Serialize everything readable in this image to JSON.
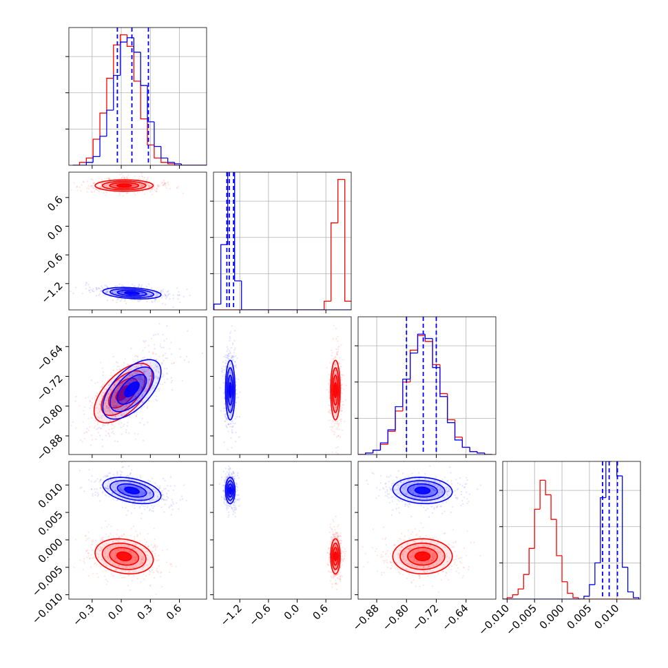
{
  "chart_data": {
    "type": "corner",
    "colors": [
      "#ff0000",
      "#0000ff"
    ],
    "quantile_color": "#0000ff",
    "grid": true,
    "params": [
      {
        "lim": [
          -0.54,
          0.88
        ],
        "ticks": [
          {
            "value": -0.3,
            "label": "−0.3"
          },
          {
            "value": 0.0,
            "label": "0.0"
          },
          {
            "value": 0.3,
            "label": "0.3"
          },
          {
            "value": 0.6,
            "label": "0.6"
          }
        ]
      },
      {
        "lim": [
          -1.75,
          1.13
        ],
        "ticks": [
          {
            "value": -1.2,
            "label": "−1.2"
          },
          {
            "value": -0.6,
            "label": "−0.6"
          },
          {
            "value": 0.0,
            "label": "0.0"
          },
          {
            "value": 0.6,
            "label": "0.6"
          }
        ]
      },
      {
        "lim": [
          -0.93,
          -0.56
        ],
        "ticks": [
          {
            "value": -0.88,
            "label": "−0.88"
          },
          {
            "value": -0.8,
            "label": "−0.80"
          },
          {
            "value": -0.72,
            "label": "−0.72"
          },
          {
            "value": -0.64,
            "label": "−0.64"
          }
        ]
      },
      {
        "lim": [
          -0.0108,
          0.0143
        ],
        "ticks": [
          {
            "value": -0.01,
            "label": "−0.010"
          },
          {
            "value": -0.005,
            "label": "−0.005"
          },
          {
            "value": 0.0,
            "label": "0.000"
          },
          0.005,
          {
            "value": 0.01,
            "label": "0.010"
          }
        ]
      }
    ],
    "hist_ylim": [
      0,
      0.95
    ],
    "hist_yticks": [
      0.25,
      0.5,
      0.75
    ],
    "hists": [
      {
        "bins": [
          -0.5,
          -0.43,
          -0.36,
          -0.29,
          -0.22,
          -0.15,
          -0.08,
          -0.01,
          0.06,
          0.13,
          0.2,
          0.27,
          0.34,
          0.41,
          0.48,
          0.55,
          0.62,
          0.69,
          0.76,
          0.83,
          0.9
        ],
        "counts": [
          [
            0,
            0.02,
            0.05,
            0.18,
            0.36,
            0.6,
            0.83,
            0.9,
            0.82,
            0.58,
            0.32,
            0.14,
            0.05,
            0.02,
            0.01,
            0,
            0,
            0,
            0,
            0
          ],
          [
            0,
            0,
            0.02,
            0.06,
            0.2,
            0.38,
            0.62,
            0.85,
            0.88,
            0.78,
            0.55,
            0.3,
            0.13,
            0.05,
            0.02,
            0.01,
            0,
            0,
            0,
            0
          ]
        ],
        "quantiles": [
          -0.04,
          0.11,
          0.28
        ]
      },
      {
        "bins": [
          -1.74,
          -1.596,
          -1.452,
          -1.308,
          -1.164,
          -1.02,
          -0.876,
          -0.732,
          -0.588,
          -0.444,
          -0.3,
          -0.156,
          -0.012,
          0.132,
          0.276,
          0.42,
          0.564,
          0.708,
          0.852,
          0.996,
          1.14
        ],
        "counts": [
          [
            0,
            0,
            0,
            0,
            0,
            0,
            0,
            0,
            0,
            0,
            0,
            0,
            0,
            0,
            0,
            0,
            0.06,
            0.6,
            0.9,
            0.06
          ],
          [
            0.04,
            0.45,
            0.97,
            0.2,
            0,
            0,
            0,
            0,
            0,
            0,
            0,
            0,
            0,
            0,
            0,
            0,
            0,
            0,
            0,
            0
          ]
        ],
        "quantiles": [
          -1.47,
          -1.42,
          -1.33
        ]
      },
      {
        "bins": [
          -0.93,
          -0.91,
          -0.89,
          -0.87,
          -0.85,
          -0.83,
          -0.81,
          -0.79,
          -0.77,
          -0.75,
          -0.73,
          -0.71,
          -0.69,
          -0.67,
          -0.65,
          -0.63,
          -0.61,
          -0.59,
          -0.57
        ],
        "counts": [
          [
            0,
            0.01,
            0.03,
            0.07,
            0.16,
            0.3,
            0.5,
            0.72,
            0.82,
            0.78,
            0.62,
            0.42,
            0.24,
            0.12,
            0.05,
            0.02,
            0.01,
            0
          ],
          [
            0,
            0.01,
            0.03,
            0.08,
            0.17,
            0.33,
            0.52,
            0.7,
            0.83,
            0.8,
            0.6,
            0.4,
            0.22,
            0.1,
            0.05,
            0.02,
            0.01,
            0
          ]
        ],
        "quantiles": [
          -0.8,
          -0.755,
          -0.72
        ]
      },
      {
        "bins": [
          -0.011,
          -0.01,
          -0.009,
          -0.008,
          -0.007,
          -0.006,
          -0.005,
          -0.004,
          -0.003,
          -0.002,
          -0.001,
          0,
          0.001,
          0.002,
          0.003,
          0.004,
          0.005,
          0.006,
          0.007,
          0.008,
          0.009,
          0.01,
          0.011,
          0.012,
          0.013,
          0.014
        ],
        "counts": [
          [
            0,
            0.01,
            0.03,
            0.07,
            0.17,
            0.35,
            0.62,
            0.82,
            0.72,
            0.55,
            0.3,
            0.12,
            0.04,
            0.01,
            0,
            0,
            0,
            0,
            0,
            0,
            0,
            0,
            0,
            0,
            0
          ],
          [
            0,
            0,
            0,
            0,
            0,
            0,
            0,
            0,
            0,
            0,
            0,
            0,
            0,
            0,
            0,
            0.02,
            0.1,
            0.25,
            0.7,
            0.95,
            0.97,
            0.85,
            0.22,
            0.05,
            0.01
          ]
        ],
        "quantiles": [
          0.0074,
          0.0086,
          0.0101
        ]
      }
    ],
    "pairs": [
      {
        "x": 0,
        "y": 1,
        "fits": [
          {
            "center": [
              0.03,
              0.85
            ],
            "sd": [
              0.15,
              0.06
            ],
            "corr": 0
          },
          {
            "center": [
              0.11,
              -1.4
            ],
            "sd": [
              0.15,
              0.06
            ],
            "corr": -0.3
          }
        ]
      },
      {
        "x": 0,
        "y": 2,
        "fits": [
          {
            "center": [
              0.02,
              -0.765
            ],
            "sd": [
              0.15,
              0.04
            ],
            "corr": 0.6
          },
          {
            "center": [
              0.11,
              -0.755
            ],
            "sd": [
              0.15,
              0.04
            ],
            "corr": 0.6
          }
        ]
      },
      {
        "x": 1,
        "y": 2,
        "fits": [
          {
            "center": [
              0.8,
              -0.757
            ],
            "sd": [
              0.05,
              0.04
            ],
            "corr": 0
          },
          {
            "center": [
              -1.4,
              -0.757
            ],
            "sd": [
              0.05,
              0.04
            ],
            "corr": 0
          }
        ]
      },
      {
        "x": 0,
        "y": 3,
        "fits": [
          {
            "center": [
              0.03,
              -0.003
            ],
            "sd": [
              0.15,
              0.0016
            ],
            "corr": -0.2
          },
          {
            "center": [
              0.11,
              0.009
            ],
            "sd": [
              0.15,
              0.0012
            ],
            "corr": -0.4
          }
        ]
      },
      {
        "x": 1,
        "y": 3,
        "fits": [
          {
            "center": [
              0.8,
              -0.003
            ],
            "sd": [
              0.05,
              0.0016
            ],
            "corr": 0
          },
          {
            "center": [
              -1.4,
              0.009
            ],
            "sd": [
              0.05,
              0.0012
            ],
            "corr": 0
          }
        ]
      },
      {
        "x": 2,
        "y": 3,
        "fits": [
          {
            "center": [
              -0.757,
              -0.003
            ],
            "sd": [
              0.04,
              0.0016
            ],
            "corr": 0
          },
          {
            "center": [
              -0.757,
              0.009
            ],
            "sd": [
              0.04,
              0.0012
            ],
            "corr": -0.1
          }
        ]
      }
    ]
  }
}
